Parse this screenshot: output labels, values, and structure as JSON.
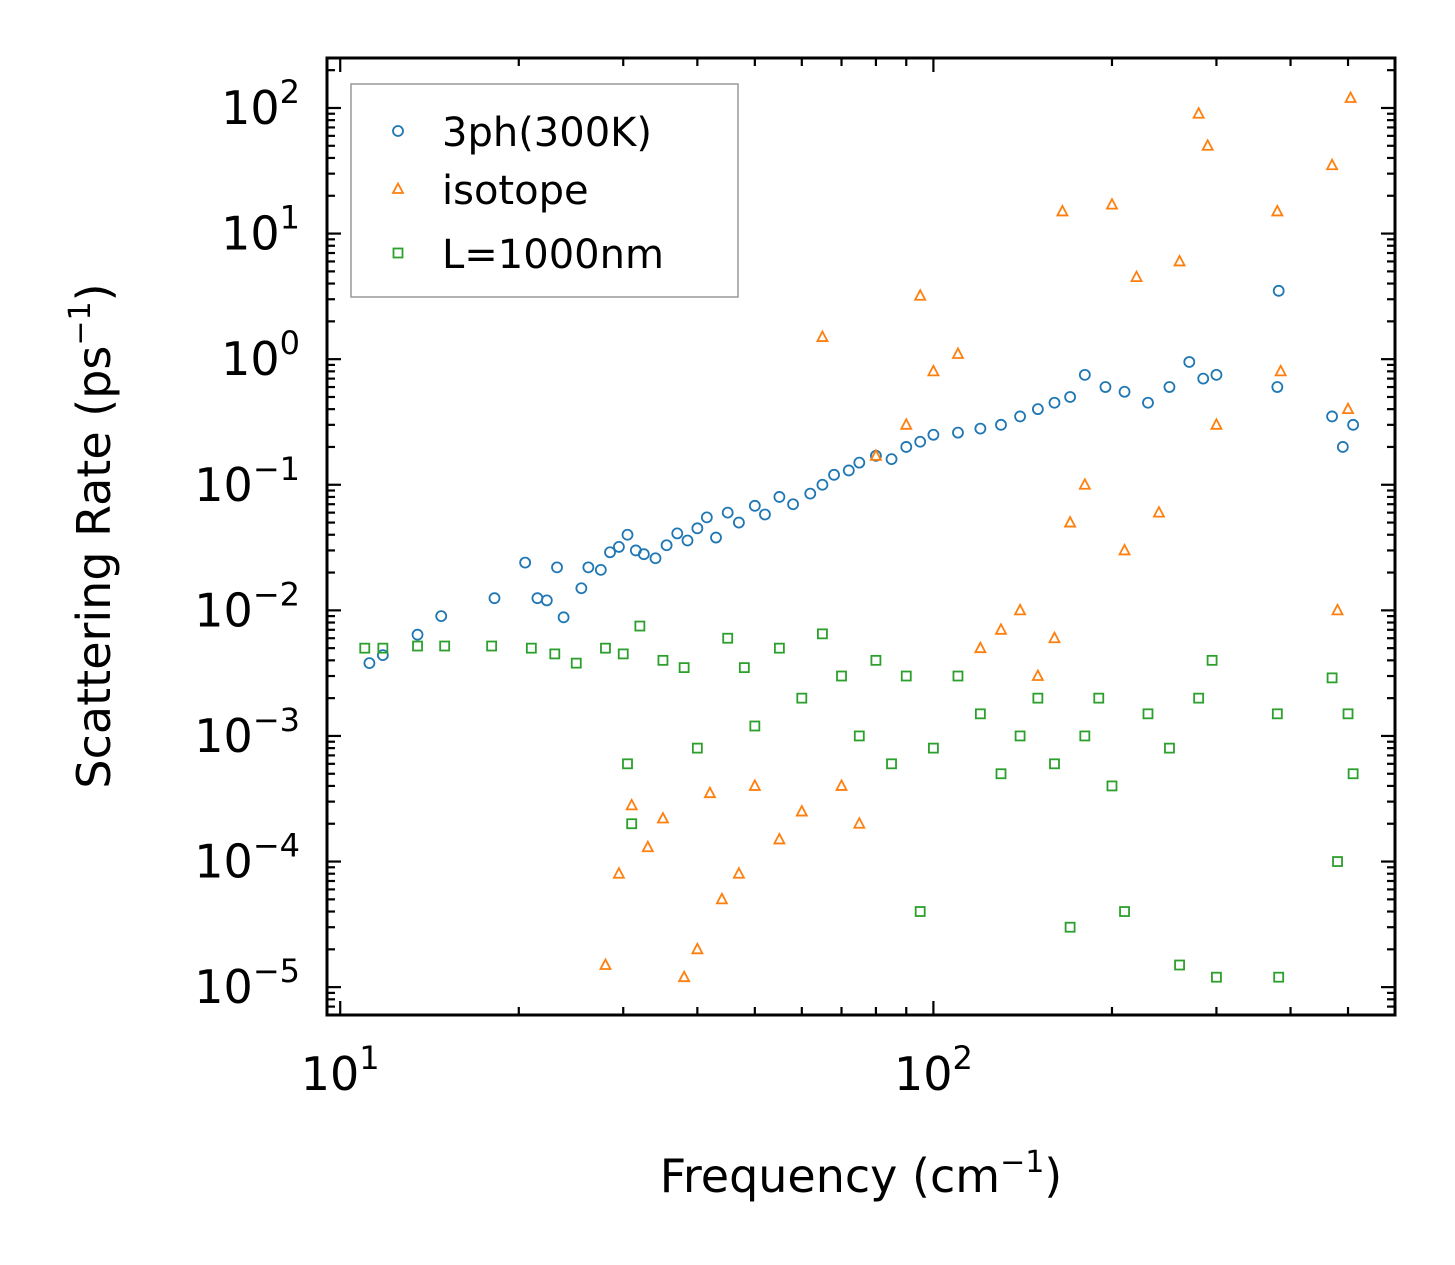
{
  "chart_data": {
    "type": "scatter",
    "xscale": "log",
    "yscale": "log",
    "xlim": [
      9.5,
      600
    ],
    "ylim": [
      6e-06,
      250
    ],
    "xlabel_base": "Frequency (cm",
    "xlabel_exp": "−1",
    "xlabel_close": ")",
    "ylabel_base": "Scattering Rate (ps",
    "ylabel_exp": "−1",
    "ylabel_close": ")",
    "x_major_ticks": [
      {
        "value": 10,
        "base": "10",
        "exp": "1"
      },
      {
        "value": 100,
        "base": "10",
        "exp": "2"
      }
    ],
    "y_major_ticks": [
      {
        "value": 100,
        "base": "10",
        "exp": "2"
      },
      {
        "value": 10,
        "base": "10",
        "exp": "1"
      },
      {
        "value": 1,
        "base": "10",
        "exp": "0"
      },
      {
        "value": 0.1,
        "base": "10",
        "exp": "−1"
      },
      {
        "value": 0.01,
        "base": "10",
        "exp": "−2"
      },
      {
        "value": 0.001,
        "base": "10",
        "exp": "−3"
      },
      {
        "value": 0.0001,
        "base": "10",
        "exp": "−4"
      },
      {
        "value": 1e-05,
        "base": "10",
        "exp": "−5"
      }
    ],
    "legend_position": "top-left",
    "series": [
      {
        "name": "3ph(300K)",
        "marker": "circle",
        "color": "#1f77b4",
        "points": [
          [
            11.2,
            0.0038
          ],
          [
            11.8,
            0.0044
          ],
          [
            13.5,
            0.0064
          ],
          [
            14.8,
            0.009
          ],
          [
            18.2,
            0.0125
          ],
          [
            20.5,
            0.024
          ],
          [
            21.5,
            0.0125
          ],
          [
            22.3,
            0.012
          ],
          [
            23.2,
            0.022
          ],
          [
            23.8,
            0.0088
          ],
          [
            25.5,
            0.015
          ],
          [
            26.2,
            0.022
          ],
          [
            27.5,
            0.021
          ],
          [
            28.5,
            0.029
          ],
          [
            29.5,
            0.032
          ],
          [
            30.5,
            0.04
          ],
          [
            31.5,
            0.03
          ],
          [
            32.5,
            0.028
          ],
          [
            34,
            0.026
          ],
          [
            35.5,
            0.033
          ],
          [
            37,
            0.041
          ],
          [
            38.5,
            0.036
          ],
          [
            40,
            0.045
          ],
          [
            41.5,
            0.055
          ],
          [
            43,
            0.038
          ],
          [
            45,
            0.06
          ],
          [
            47,
            0.05
          ],
          [
            50,
            0.068
          ],
          [
            52,
            0.058
          ],
          [
            55,
            0.08
          ],
          [
            58,
            0.07
          ],
          [
            62,
            0.085
          ],
          [
            65,
            0.1
          ],
          [
            68,
            0.12
          ],
          [
            72,
            0.13
          ],
          [
            75,
            0.15
          ],
          [
            80,
            0.17
          ],
          [
            85,
            0.16
          ],
          [
            90,
            0.2
          ],
          [
            95,
            0.22
          ],
          [
            100,
            0.25
          ],
          [
            110,
            0.26
          ],
          [
            120,
            0.28
          ],
          [
            130,
            0.3
          ],
          [
            140,
            0.35
          ],
          [
            150,
            0.4
          ],
          [
            160,
            0.45
          ],
          [
            170,
            0.5
          ],
          [
            180,
            0.75
          ],
          [
            195,
            0.6
          ],
          [
            210,
            0.55
          ],
          [
            230,
            0.45
          ],
          [
            250,
            0.6
          ],
          [
            270,
            0.95
          ],
          [
            285,
            0.7
          ],
          [
            300,
            0.75
          ],
          [
            380,
            0.6
          ],
          [
            382,
            3.5
          ],
          [
            470,
            0.35
          ],
          [
            490,
            0.2
          ],
          [
            510,
            0.3
          ]
        ]
      },
      {
        "name": "isotope",
        "marker": "triangle",
        "color": "#ff7f0e",
        "points": [
          [
            28,
            1.5e-05
          ],
          [
            29.5,
            8e-05
          ],
          [
            31,
            0.00028
          ],
          [
            33,
            0.00013
          ],
          [
            35,
            0.00022
          ],
          [
            38,
            1.2e-05
          ],
          [
            40,
            2e-05
          ],
          [
            42,
            0.00035
          ],
          [
            44,
            5e-05
          ],
          [
            47,
            8e-05
          ],
          [
            50,
            0.0004
          ],
          [
            55,
            0.00015
          ],
          [
            60,
            0.00025
          ],
          [
            65,
            1.5
          ],
          [
            70,
            0.0004
          ],
          [
            75,
            0.0002
          ],
          [
            80,
            0.17
          ],
          [
            90,
            0.3
          ],
          [
            95,
            3.2
          ],
          [
            100,
            0.8
          ],
          [
            110,
            1.1
          ],
          [
            120,
            0.005
          ],
          [
            130,
            0.007
          ],
          [
            140,
            0.01
          ],
          [
            150,
            0.003
          ],
          [
            160,
            0.006
          ],
          [
            165,
            15
          ],
          [
            170,
            0.05
          ],
          [
            180,
            0.1
          ],
          [
            200,
            17
          ],
          [
            210,
            0.03
          ],
          [
            220,
            4.5
          ],
          [
            240,
            0.06
          ],
          [
            260,
            6
          ],
          [
            280,
            90
          ],
          [
            290,
            50
          ],
          [
            300,
            0.3
          ],
          [
            380,
            15
          ],
          [
            385,
            0.8
          ],
          [
            470,
            35
          ],
          [
            480,
            0.01
          ],
          [
            500,
            0.4
          ],
          [
            505,
            120
          ]
        ]
      },
      {
        "name": "L=1000nm",
        "marker": "square",
        "color": "#2ca02c",
        "points": [
          [
            11,
            0.005
          ],
          [
            11.8,
            0.005
          ],
          [
            13.5,
            0.0052
          ],
          [
            15,
            0.0052
          ],
          [
            18,
            0.0052
          ],
          [
            21,
            0.005
          ],
          [
            23,
            0.0045
          ],
          [
            25,
            0.0038
          ],
          [
            28,
            0.005
          ],
          [
            30,
            0.0045
          ],
          [
            30.5,
            0.0006
          ],
          [
            31,
            0.0002
          ],
          [
            32,
            0.0075
          ],
          [
            35,
            0.004
          ],
          [
            38,
            0.0035
          ],
          [
            40,
            0.0008
          ],
          [
            45,
            0.006
          ],
          [
            48,
            0.0035
          ],
          [
            50,
            0.0012
          ],
          [
            55,
            0.005
          ],
          [
            60,
            0.002
          ],
          [
            65,
            0.0065
          ],
          [
            70,
            0.003
          ],
          [
            75,
            0.001
          ],
          [
            80,
            0.004
          ],
          [
            85,
            0.0006
          ],
          [
            90,
            0.003
          ],
          [
            95,
            4e-05
          ],
          [
            100,
            0.0008
          ],
          [
            110,
            0.003
          ],
          [
            120,
            0.0015
          ],
          [
            130,
            0.0005
          ],
          [
            140,
            0.001
          ],
          [
            150,
            0.002
          ],
          [
            160,
            0.0006
          ],
          [
            170,
            3e-05
          ],
          [
            180,
            0.001
          ],
          [
            190,
            0.002
          ],
          [
            200,
            0.0004
          ],
          [
            210,
            4e-05
          ],
          [
            230,
            0.0015
          ],
          [
            250,
            0.0008
          ],
          [
            260,
            1.5e-05
          ],
          [
            280,
            0.002
          ],
          [
            295,
            0.004
          ],
          [
            300,
            1.2e-05
          ],
          [
            380,
            0.0015
          ],
          [
            382,
            1.2e-05
          ],
          [
            470,
            0.0029
          ],
          [
            480,
            0.0001
          ],
          [
            500,
            0.0015
          ],
          [
            510,
            0.0005
          ]
        ]
      }
    ]
  }
}
